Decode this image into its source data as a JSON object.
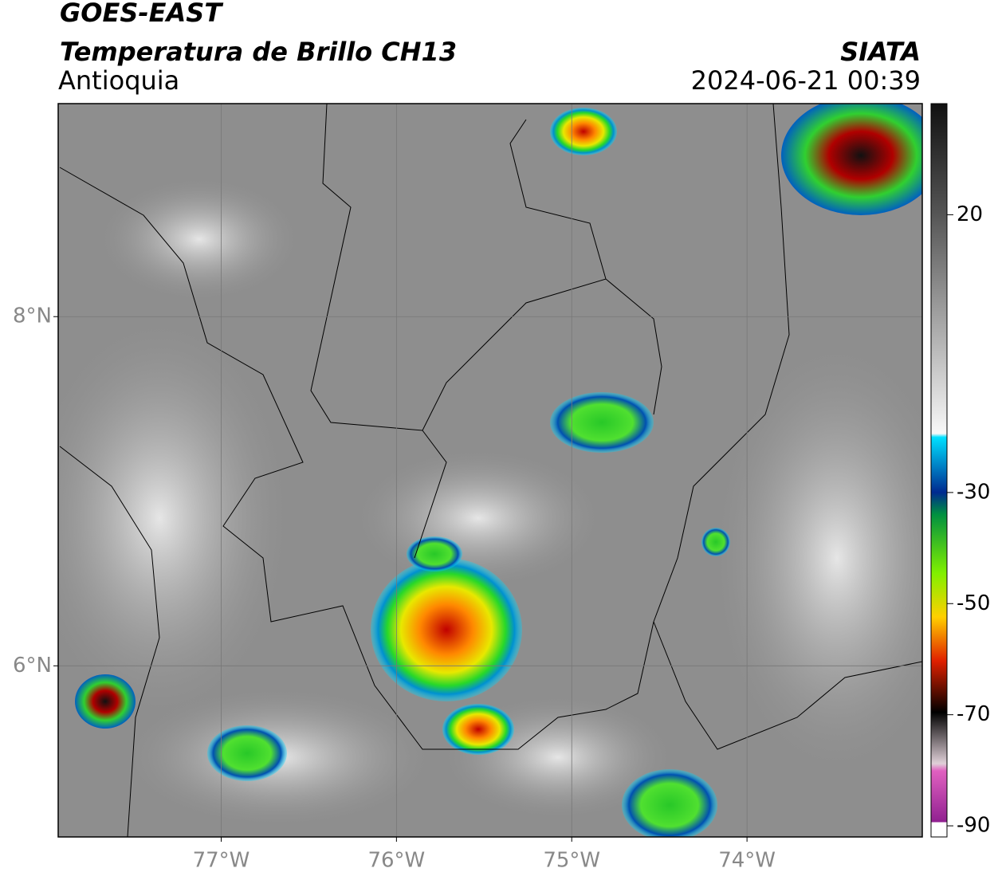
{
  "header": {
    "satellite": "GOES-EAST",
    "product": "Temperatura de Brillo CH13",
    "region": "Antioquia",
    "agency": "SIATA",
    "datetime": "2024-06-21 00:39"
  },
  "map": {
    "xlim": [
      -77.93,
      -73
    ],
    "ylim": [
      5.02,
      9.22
    ],
    "xticks": [
      {
        "value": -77,
        "label": "77°W"
      },
      {
        "value": -76,
        "label": "76°W"
      },
      {
        "value": -75,
        "label": "75°W"
      },
      {
        "value": -74,
        "label": "74°W"
      }
    ],
    "yticks": [
      {
        "value": 8,
        "label": "8°N"
      },
      {
        "value": 6,
        "label": "6°N"
      }
    ],
    "grid": true
  },
  "colorbar": {
    "lim": [
      -92,
      40
    ],
    "ticks": [
      20,
      -30,
      -50,
      -70,
      -90
    ]
  }
}
